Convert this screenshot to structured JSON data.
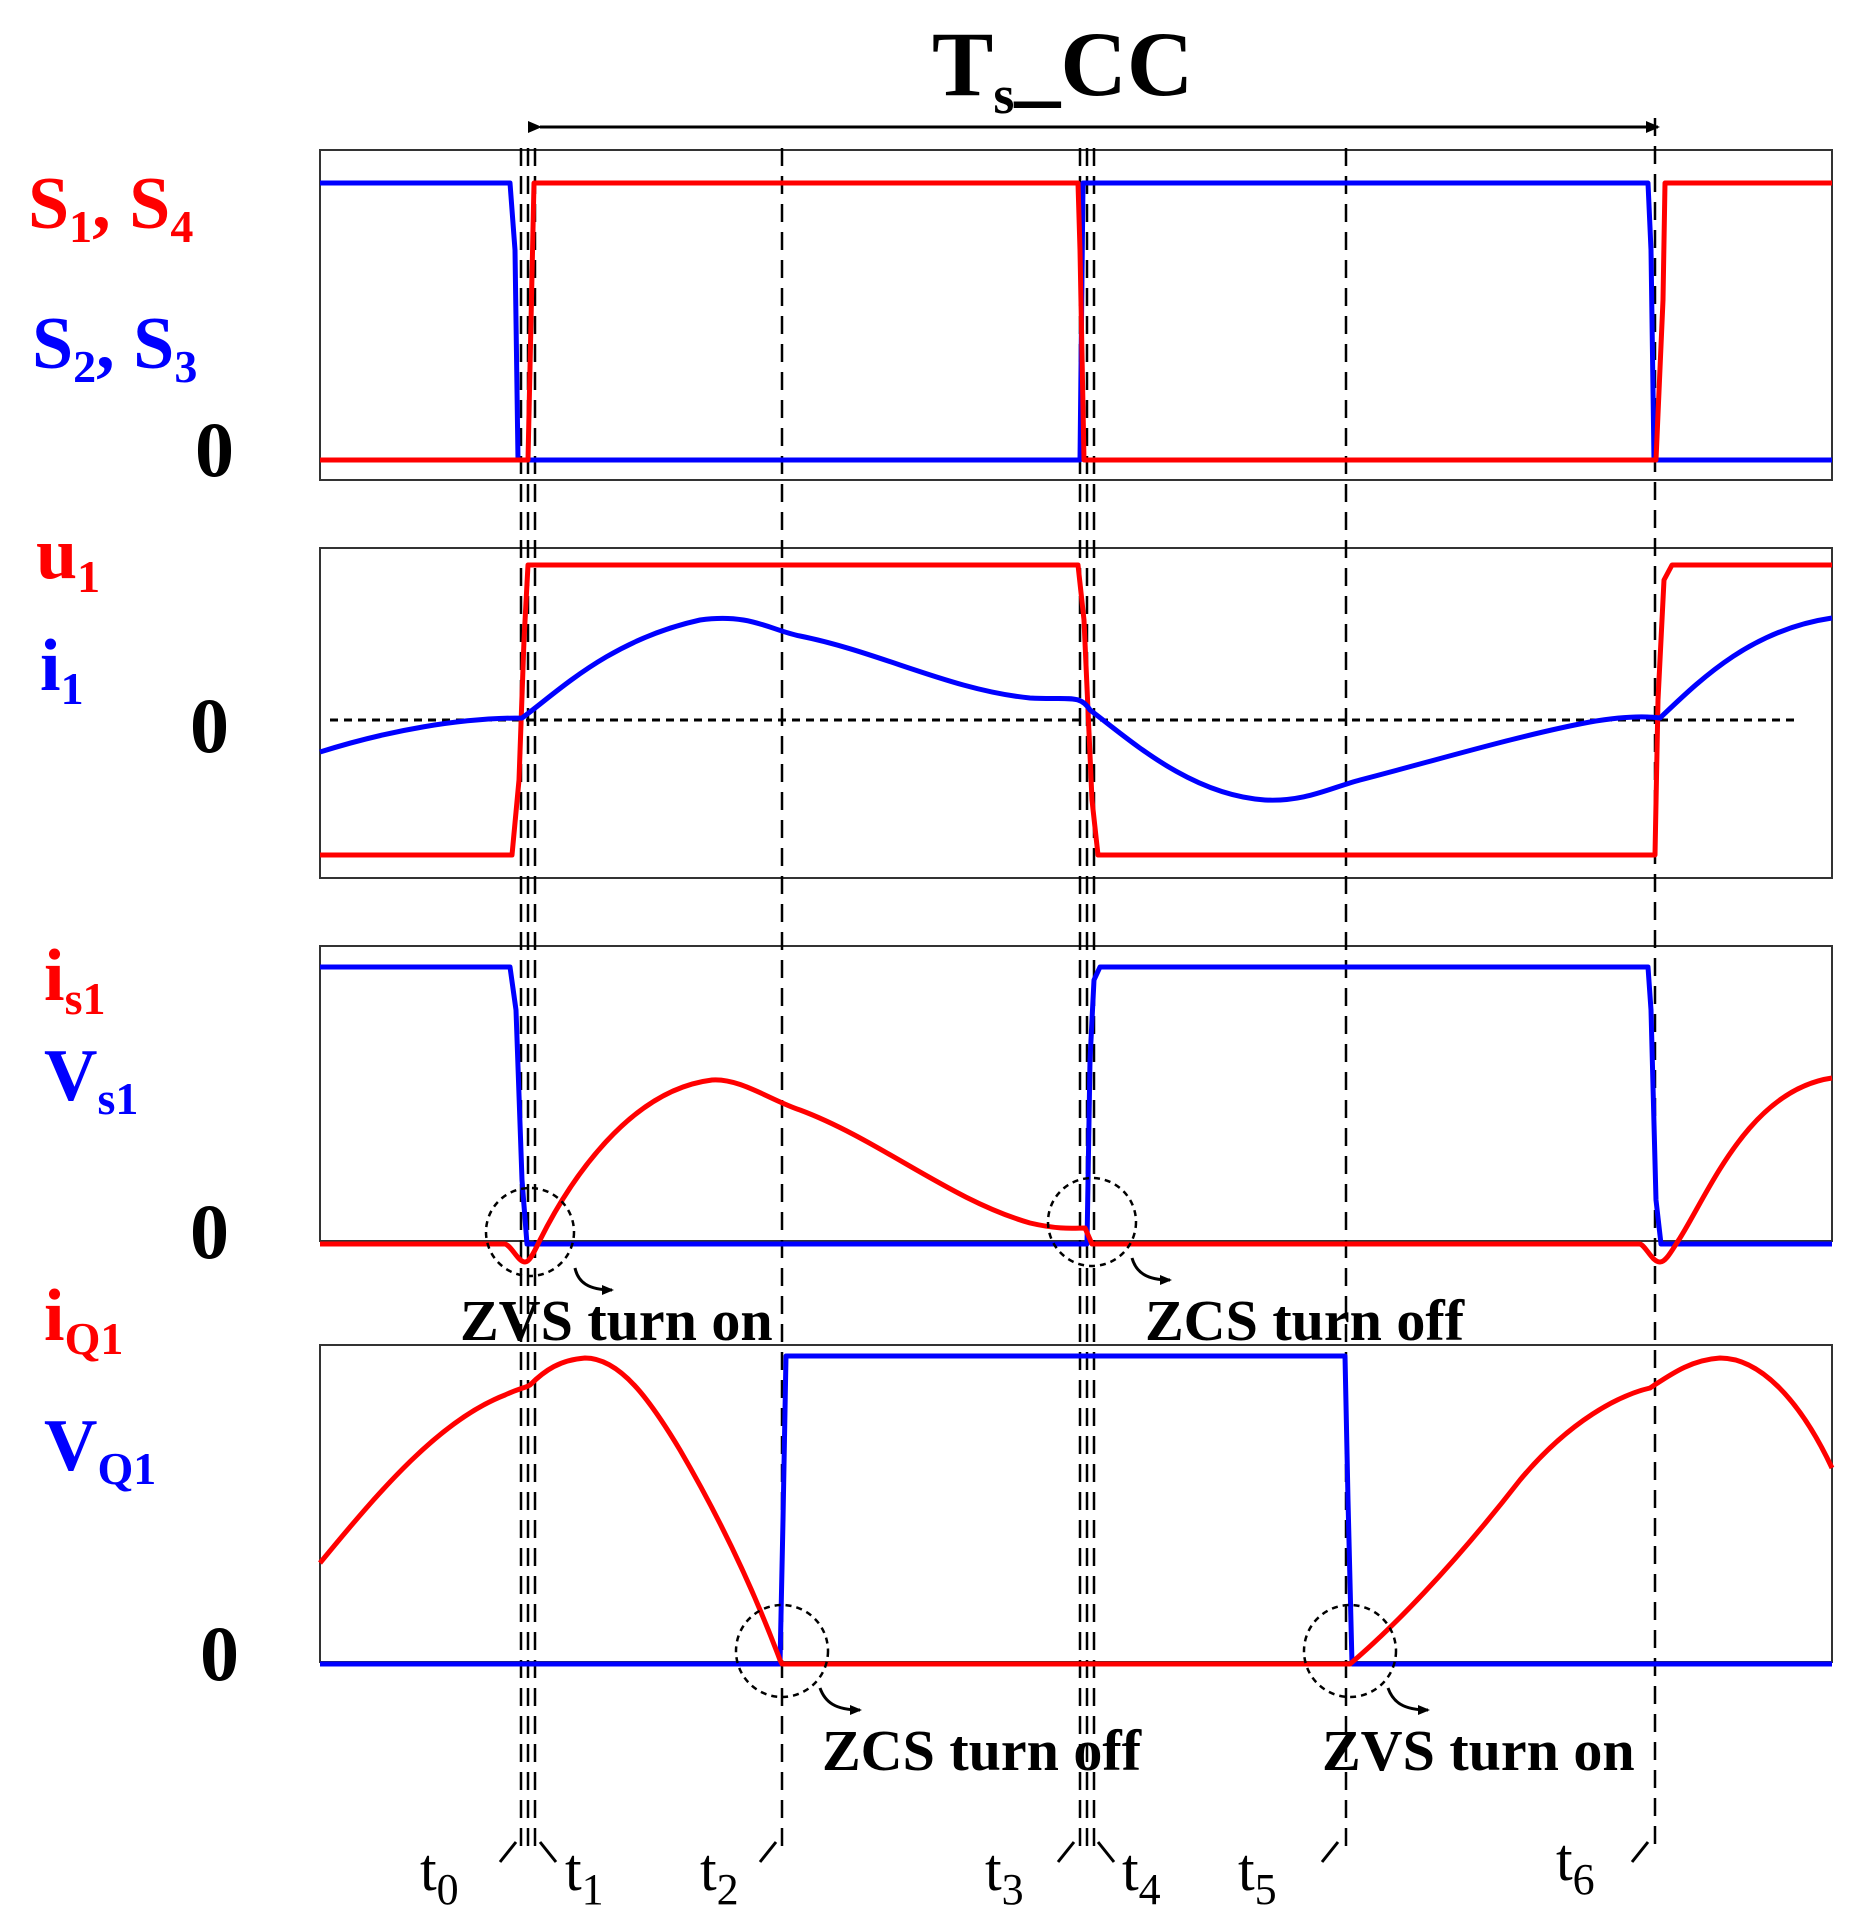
{
  "title": {
    "main": "T",
    "sub": "s",
    "rest": "_CC"
  },
  "colors": {
    "red": "#ff0000",
    "blue": "#0000ff",
    "black": "#000000"
  },
  "panel1": {
    "red_label": {
      "a": "S",
      "a_sub": "1",
      "sep": ", ",
      "b": "S",
      "b_sub": "4"
    },
    "blue_label": {
      "a": "S",
      "a_sub": "2",
      "sep": ", ",
      "b": "S",
      "b_sub": "3"
    },
    "zero": "0"
  },
  "panel2": {
    "red_label": {
      "a": "u",
      "a_sub": "1"
    },
    "blue_label": {
      "a": "i",
      "a_sub": "1"
    },
    "zero": "0"
  },
  "panel3": {
    "red_label": {
      "a": "i",
      "a_sub": "s1"
    },
    "blue_label": {
      "a": "V",
      "a_sub": "s1"
    },
    "zero": "0"
  },
  "panel4": {
    "red_label": {
      "a": "i",
      "a_sub": "Q1"
    },
    "blue_label": {
      "a": "V",
      "a_sub": "Q1"
    },
    "zero": "0"
  },
  "annotations": {
    "zvs_on_1": "ZVS turn on",
    "zcs_off_1": "ZCS turn off",
    "zcs_off_2": "ZCS turn off",
    "zvs_on_2": "ZVS turn on"
  },
  "time_labels": [
    {
      "base": "t",
      "sub": "0"
    },
    {
      "base": "t",
      "sub": "1"
    },
    {
      "base": "t",
      "sub": "2"
    },
    {
      "base": "t",
      "sub": "3"
    },
    {
      "base": "t",
      "sub": "4"
    },
    {
      "base": "t",
      "sub": "5"
    },
    {
      "base": "t",
      "sub": "6"
    }
  ]
}
